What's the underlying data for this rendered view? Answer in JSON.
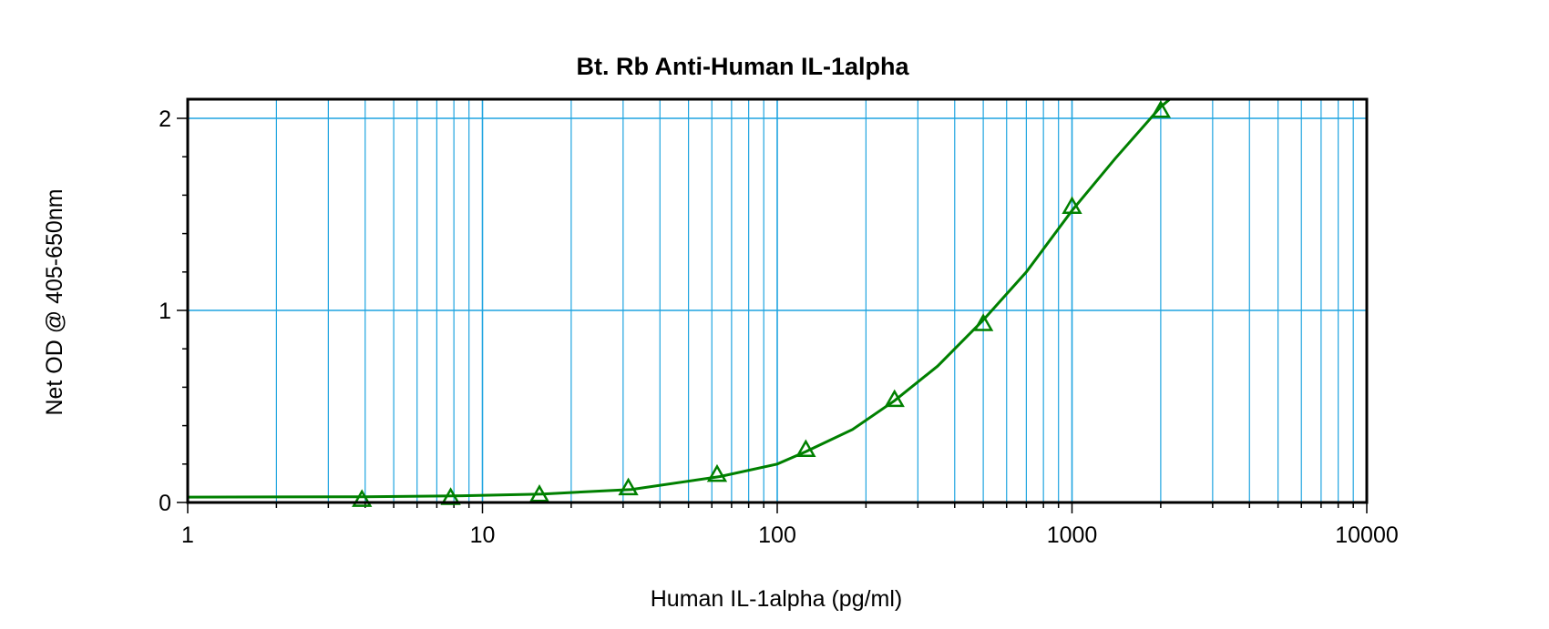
{
  "chart_data": {
    "type": "scatter",
    "title": "Bt. Rb Anti-Human IL-1alpha",
    "xlabel": "Human IL-1alpha (pg/ml)",
    "ylabel": "Net OD @ 405-650nm",
    "x_scale": "log",
    "xlim": [
      1,
      10000
    ],
    "ylim": [
      0,
      2.1
    ],
    "x_ticks": [
      1,
      10,
      100,
      1000,
      10000
    ],
    "x_tick_labels": [
      "1",
      "10",
      "100",
      "1000",
      "10000"
    ],
    "y_ticks": [
      0,
      1,
      2
    ],
    "y_tick_labels": [
      "0",
      "1",
      "2"
    ],
    "grid": true,
    "colors": {
      "series": "#008000",
      "grid": "#1ea4e0",
      "frame": "#000000"
    },
    "series": [
      {
        "marker": "triangle",
        "points": [
          {
            "x": 3.9,
            "y": 0.015
          },
          {
            "x": 7.8,
            "y": 0.025
          },
          {
            "x": 15.6,
            "y": 0.04
          },
          {
            "x": 31.25,
            "y": 0.075
          },
          {
            "x": 62.5,
            "y": 0.145
          },
          {
            "x": 125,
            "y": 0.275
          },
          {
            "x": 250,
            "y": 0.535
          },
          {
            "x": 500,
            "y": 0.93
          },
          {
            "x": 1000,
            "y": 1.54
          },
          {
            "x": 2000,
            "y": 2.04
          }
        ],
        "fit_curve": [
          {
            "x": 1,
            "y": 0.028
          },
          {
            "x": 2,
            "y": 0.029
          },
          {
            "x": 4,
            "y": 0.03
          },
          {
            "x": 8,
            "y": 0.034
          },
          {
            "x": 16,
            "y": 0.044
          },
          {
            "x": 32,
            "y": 0.068
          },
          {
            "x": 64,
            "y": 0.135
          },
          {
            "x": 100,
            "y": 0.2
          },
          {
            "x": 125,
            "y": 0.265
          },
          {
            "x": 180,
            "y": 0.38
          },
          {
            "x": 250,
            "y": 0.53
          },
          {
            "x": 350,
            "y": 0.71
          },
          {
            "x": 500,
            "y": 0.95
          },
          {
            "x": 700,
            "y": 1.2
          },
          {
            "x": 1000,
            "y": 1.52
          },
          {
            "x": 1400,
            "y": 1.79
          },
          {
            "x": 2000,
            "y": 2.06
          },
          {
            "x": 2150,
            "y": 2.1
          }
        ]
      }
    ]
  }
}
